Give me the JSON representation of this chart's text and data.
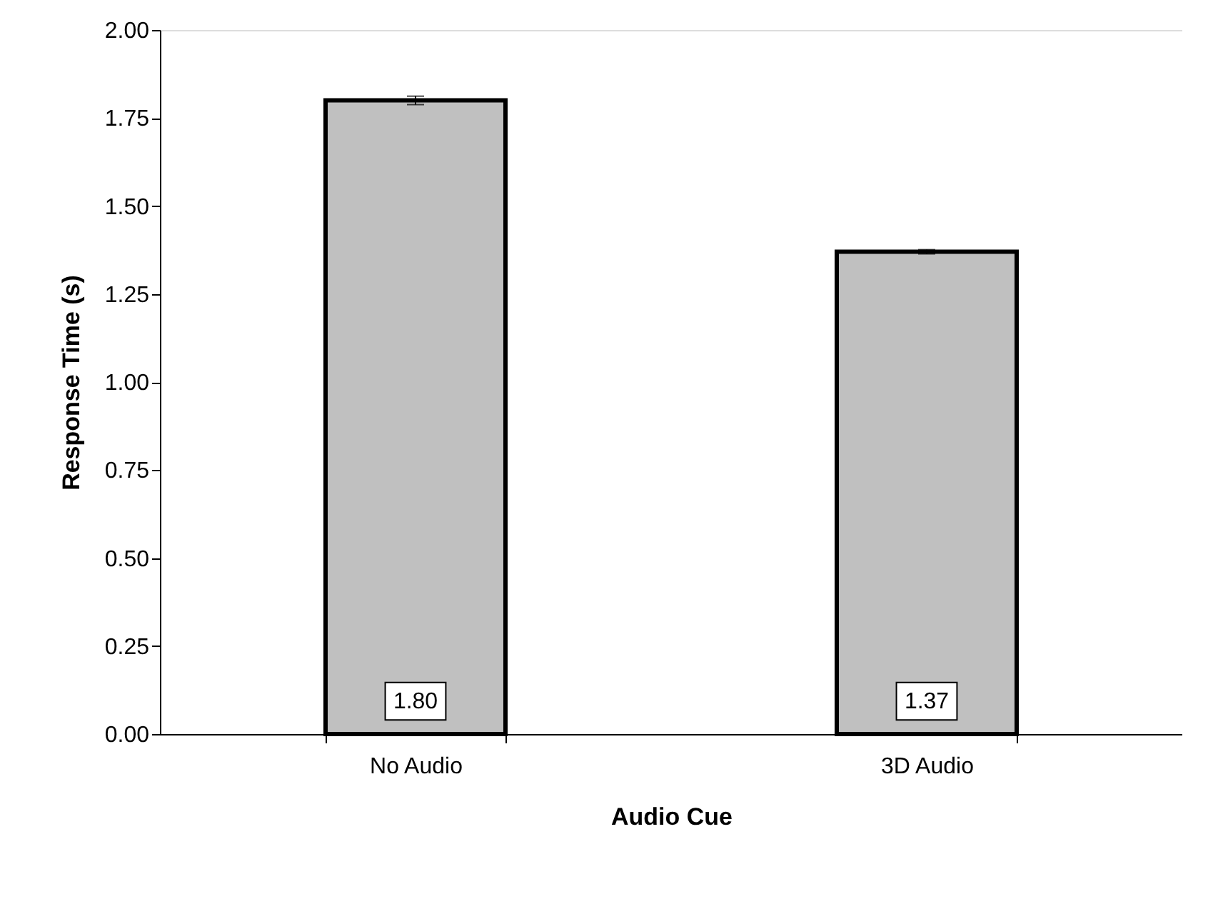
{
  "chart_data": {
    "type": "bar",
    "xlabel": "Audio Cue",
    "ylabel": "Response Time (s)",
    "categories": [
      "No Audio",
      "3D Audio"
    ],
    "series": [
      {
        "color": "#c0c0c0",
        "values": [
          1.8,
          1.37
        ],
        "errors": [
          0.012,
          0.006
        ],
        "value_labels": [
          "1.80",
          "1.37"
        ]
      }
    ],
    "ylim": [
      0,
      2
    ],
    "yticks": [
      {
        "value": 0,
        "label": "0.00"
      },
      {
        "value": 0.25,
        "label": "0.25"
      },
      {
        "value": 0.5,
        "label": "0.50"
      },
      {
        "value": 0.75,
        "label": "0.75"
      },
      {
        "value": 1,
        "label": "1.00"
      },
      {
        "value": 1.25,
        "label": "1.25"
      },
      {
        "value": 1.5,
        "label": "1.50"
      },
      {
        "value": 1.75,
        "label": "1.75"
      },
      {
        "value": 2,
        "label": "2.00"
      }
    ],
    "grid": false
  }
}
